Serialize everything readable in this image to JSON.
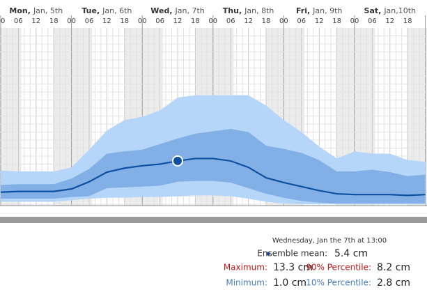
{
  "chart_data": {
    "type": "line",
    "days": [
      {
        "name": "Mon,",
        "date": "Jan, 5th"
      },
      {
        "name": "Tue,",
        "date": "Jan, 6th"
      },
      {
        "name": "Wed,",
        "date": "Jan, 7th"
      },
      {
        "name": "Thu,",
        "date": "Jan, 8th"
      },
      {
        "name": "Fri,",
        "date": "Jan, 9th"
      },
      {
        "name": "Sat,",
        "date": "Jan,10th"
      }
    ],
    "categories": [
      "00",
      "06",
      "12",
      "18",
      "00",
      "06",
      "12",
      "18",
      "00",
      "06",
      "12",
      "18",
      "00",
      "06",
      "12",
      "18",
      "00",
      "06",
      "12",
      "18",
      "00",
      "06",
      "12",
      "18",
      null
    ],
    "ylim": [
      0,
      22
    ],
    "mean": {
      "color": "#0d4fa0",
      "values": [
        1.5,
        1.6,
        1.6,
        1.6,
        1.9,
        2.8,
        4.0,
        4.5,
        4.8,
        5.0,
        5.4,
        5.7,
        5.7,
        5.4,
        4.6,
        3.3,
        2.7,
        2.2,
        1.7,
        1.3,
        1.2,
        1.2,
        1.2,
        1.1,
        1.2
      ]
    },
    "ranges": [
      {
        "color": "#b5d6f8",
        "high": [
          4.2,
          4.1,
          4.1,
          4.1,
          4.6,
          6.8,
          9.2,
          10.5,
          10.9,
          11.7,
          13.3,
          13.6,
          13.6,
          13.6,
          13.6,
          12.3,
          10.5,
          9.0,
          7.2,
          5.7,
          6.6,
          6.3,
          6.3,
          5.5,
          5.3
        ],
        "low": [
          0.3,
          0.3,
          0.3,
          0.3,
          0.5,
          0.7,
          0.8,
          0.8,
          0.9,
          0.9,
          1.0,
          1.1,
          1.1,
          1.0,
          0.7,
          0.3,
          0.1,
          0,
          0,
          0,
          0,
          0,
          0,
          0,
          0
        ]
      },
      {
        "color": "#82b0e6",
        "high": [
          2.4,
          2.5,
          2.5,
          2.5,
          3.2,
          4.4,
          6.3,
          6.6,
          6.8,
          7.5,
          8.2,
          8.8,
          9.1,
          9.4,
          9.0,
          7.3,
          6.9,
          6.4,
          5.5,
          4.1,
          4.1,
          4.3,
          4.0,
          3.5,
          3.7
        ],
        "low": [
          0.7,
          0.7,
          0.7,
          0.7,
          0.9,
          1.0,
          2.0,
          2.1,
          2.2,
          2.3,
          2.8,
          2.9,
          2.9,
          2.7,
          2.0,
          1.3,
          0.8,
          0.4,
          0.2,
          0.1,
          0.1,
          0.1,
          0.1,
          0.1,
          0.1
        ]
      }
    ],
    "tooltip": {
      "title": "Wednesday, Jan the 7th at 13:00",
      "mean": {
        "label": "Ensemble mean:",
        "value": "5.4 cm"
      },
      "max": {
        "label": "Maximum:",
        "value": "13.3 cm"
      },
      "p90": {
        "label": "90% Percentile:",
        "value": "8.2 cm"
      },
      "min": {
        "label": "Minimum:",
        "value": "1.0 cm"
      },
      "p10": {
        "label": "10% Percentile:",
        "value": "2.8 cm"
      }
    }
  }
}
